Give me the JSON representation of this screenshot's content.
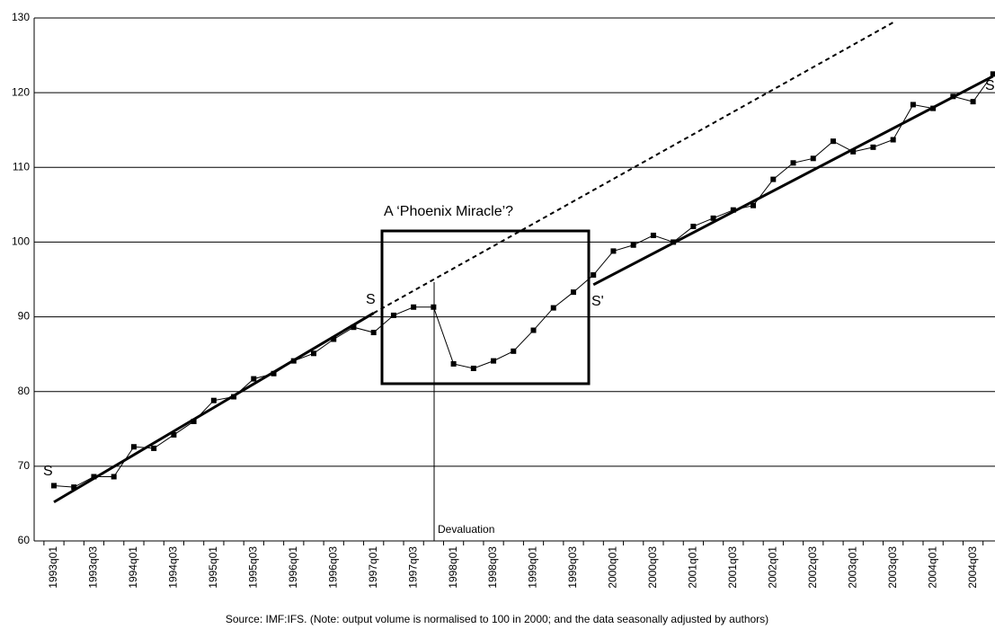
{
  "chart_data": {
    "type": "line",
    "source": "Source: IMF:IFS.   (Note: output volume is normalised to 100 in 2000; and the data seasonally adjusted by authors)",
    "categories": [
      "1993q01",
      null,
      "1993q03",
      null,
      "1994q01",
      null,
      "1994q03",
      null,
      "1995q01",
      null,
      "1995q03",
      null,
      "1996q01",
      null,
      "1996q03",
      null,
      "1997q01",
      null,
      "1997q03",
      null,
      "1998q01",
      null,
      "1998q03",
      null,
      "1999q01",
      null,
      "1999q03",
      null,
      "2000q01",
      null,
      "2000q03",
      null,
      "2001q01",
      null,
      "2001q03",
      null,
      "2002q01",
      null,
      "2002q03",
      null,
      "2003q01",
      null,
      "2003q03",
      null,
      "2004q01",
      null,
      "2004q03",
      null
    ],
    "series": [
      {
        "color": "#000000",
        "style": "markers",
        "values": [
          67.4,
          67.2,
          68.6,
          68.6,
          72.6,
          72.4,
          74.2,
          76.0,
          78.8,
          79.3,
          81.7,
          82.4,
          84.1,
          85.1,
          87.0,
          88.6,
          87.9,
          90.2,
          91.3,
          91.3,
          83.7,
          83.1,
          84.1,
          85.4,
          88.2,
          91.2,
          93.3,
          95.6,
          98.8,
          99.6,
          100.9,
          100.0,
          102.1,
          103.2,
          104.3,
          104.9,
          108.4,
          110.6,
          111.2,
          113.5,
          112.1,
          112.7,
          113.7,
          118.4,
          117.9,
          119.5,
          118.8,
          122.5
        ]
      },
      {
        "color": "#000000",
        "style": "thick",
        "values": [
          65.2,
          null,
          null,
          null,
          null,
          null,
          null,
          null,
          null,
          null,
          null,
          null,
          null,
          null,
          null,
          null,
          90.5,
          null,
          null,
          null,
          null,
          null,
          null,
          null,
          null,
          null,
          null,
          null,
          null,
          null,
          null,
          null,
          null,
          null,
          null,
          null,
          null,
          null,
          null,
          null,
          null,
          null,
          null,
          null,
          null,
          null,
          null,
          null
        ]
      },
      {
        "color": "#000000",
        "style": "dashed",
        "values": [
          null,
          null,
          null,
          null,
          null,
          null,
          null,
          null,
          null,
          null,
          null,
          null,
          null,
          null,
          null,
          null,
          90.5,
          null,
          null,
          null,
          null,
          null,
          null,
          null,
          null,
          null,
          null,
          null,
          null,
          null,
          null,
          null,
          null,
          null,
          null,
          null,
          null,
          null,
          null,
          null,
          null,
          null,
          129.4,
          null,
          null,
          null,
          null,
          null
        ]
      },
      {
        "color": "#000000",
        "style": "thick",
        "values": [
          null,
          null,
          null,
          null,
          null,
          null,
          null,
          null,
          null,
          null,
          null,
          null,
          null,
          null,
          null,
          null,
          null,
          null,
          null,
          null,
          null,
          null,
          null,
          null,
          null,
          null,
          null,
          94.3,
          null,
          null,
          null,
          null,
          null,
          null,
          null,
          null,
          null,
          null,
          null,
          null,
          null,
          null,
          null,
          null,
          null,
          null,
          null,
          122.2
        ]
      }
    ],
    "annotations": [
      "A ‘Phoenix Miracle’?",
      "S",
      "S'",
      "S",
      "S",
      "Devaluation"
    ],
    "ylim": [
      60,
      130
    ],
    "yticks": [
      60,
      70,
      80,
      90,
      100,
      110,
      120,
      130
    ],
    "grid": true
  }
}
